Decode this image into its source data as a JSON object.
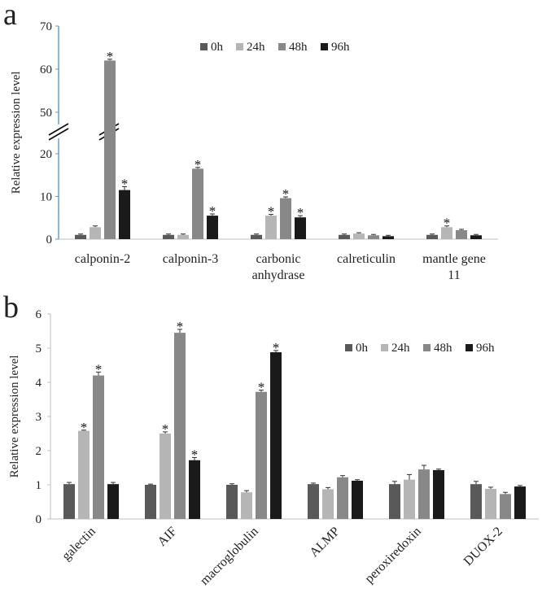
{
  "colors": {
    "0h": "#595959",
    "24h": "#b5b5b5",
    "48h": "#888888",
    "96h": "#1a1a1a",
    "axis": "#5b9bd5",
    "text": "#222222"
  },
  "chart_data": [
    {
      "panel": "a",
      "type": "bar",
      "ylabel": "Relative expression level",
      "ylim": [
        0,
        70
      ],
      "axis_break": true,
      "broken_at": [
        20,
        50
      ],
      "ytick_labels": [
        "0",
        "10",
        "20",
        "50",
        "60",
        "70"
      ],
      "legend_position": "top-right",
      "categories": [
        [
          "calponin-2"
        ],
        [
          "calponin-3"
        ],
        [
          "carbonic",
          "anhydrase"
        ],
        [
          "calreticulin"
        ],
        [
          "mantle gene",
          "11"
        ]
      ],
      "series": [
        {
          "name": "0h",
          "values": [
            1.0,
            1.0,
            1.0,
            1.0,
            1.0
          ],
          "errors": [
            0.2,
            0.2,
            0.2,
            0.2,
            0.2
          ],
          "significant": [
            false,
            false,
            false,
            false,
            false
          ]
        },
        {
          "name": "24h",
          "values": [
            2.8,
            1.0,
            5.5,
            1.3,
            2.8
          ],
          "errors": [
            0.3,
            0.2,
            0.3,
            0.2,
            0.3
          ],
          "significant": [
            false,
            false,
            true,
            false,
            true
          ]
        },
        {
          "name": "48h",
          "values": [
            62.0,
            16.5,
            9.6,
            0.9,
            2.1
          ],
          "errors": [
            0.3,
            0.3,
            0.3,
            0.2,
            0.2
          ],
          "significant": [
            true,
            true,
            true,
            false,
            false
          ]
        },
        {
          "name": "96h",
          "values": [
            11.5,
            5.5,
            5.1,
            0.7,
            0.9
          ],
          "errors": [
            0.8,
            0.4,
            0.4,
            0.2,
            0.2
          ],
          "significant": [
            true,
            true,
            true,
            false,
            false
          ]
        }
      ],
      "significance_marker": "*"
    },
    {
      "panel": "b",
      "type": "bar",
      "ylabel": "Relative expression level",
      "ylim": [
        0,
        6
      ],
      "ytick_labels": [
        "0",
        "1",
        "2",
        "3",
        "4",
        "5",
        "6"
      ],
      "legend_position": "top-right",
      "categories": [
        "galectin",
        "AIF",
        "macroglobulin",
        "ALMP",
        "peroxiredoxin",
        "DUOX-2"
      ],
      "series": [
        {
          "name": "0h",
          "values": [
            1.02,
            1.0,
            1.0,
            1.02,
            1.02,
            1.02
          ],
          "errors": [
            0.05,
            0.02,
            0.03,
            0.03,
            0.08,
            0.08
          ],
          "significant": [
            false,
            false,
            false,
            false,
            false,
            false
          ]
        },
        {
          "name": "24h",
          "values": [
            2.58,
            2.5,
            0.78,
            0.87,
            1.15,
            0.88
          ],
          "errors": [
            0.02,
            0.05,
            0.05,
            0.05,
            0.15,
            0.05
          ],
          "significant": [
            true,
            true,
            false,
            false,
            false,
            false
          ]
        },
        {
          "name": "48h",
          "values": [
            4.2,
            5.45,
            3.72,
            1.22,
            1.45,
            0.73
          ],
          "errors": [
            0.1,
            0.1,
            0.05,
            0.05,
            0.12,
            0.05
          ],
          "significant": [
            true,
            true,
            true,
            false,
            false,
            false
          ]
        },
        {
          "name": "96h",
          "values": [
            1.02,
            1.72,
            4.88,
            1.12,
            1.43,
            0.95
          ],
          "errors": [
            0.05,
            0.08,
            0.05,
            0.03,
            0.03,
            0.03
          ],
          "significant": [
            false,
            true,
            true,
            false,
            false,
            false
          ]
        }
      ],
      "significance_marker": "*"
    }
  ],
  "panels": {
    "a": {
      "letter": "a"
    },
    "b": {
      "letter": "b"
    }
  }
}
